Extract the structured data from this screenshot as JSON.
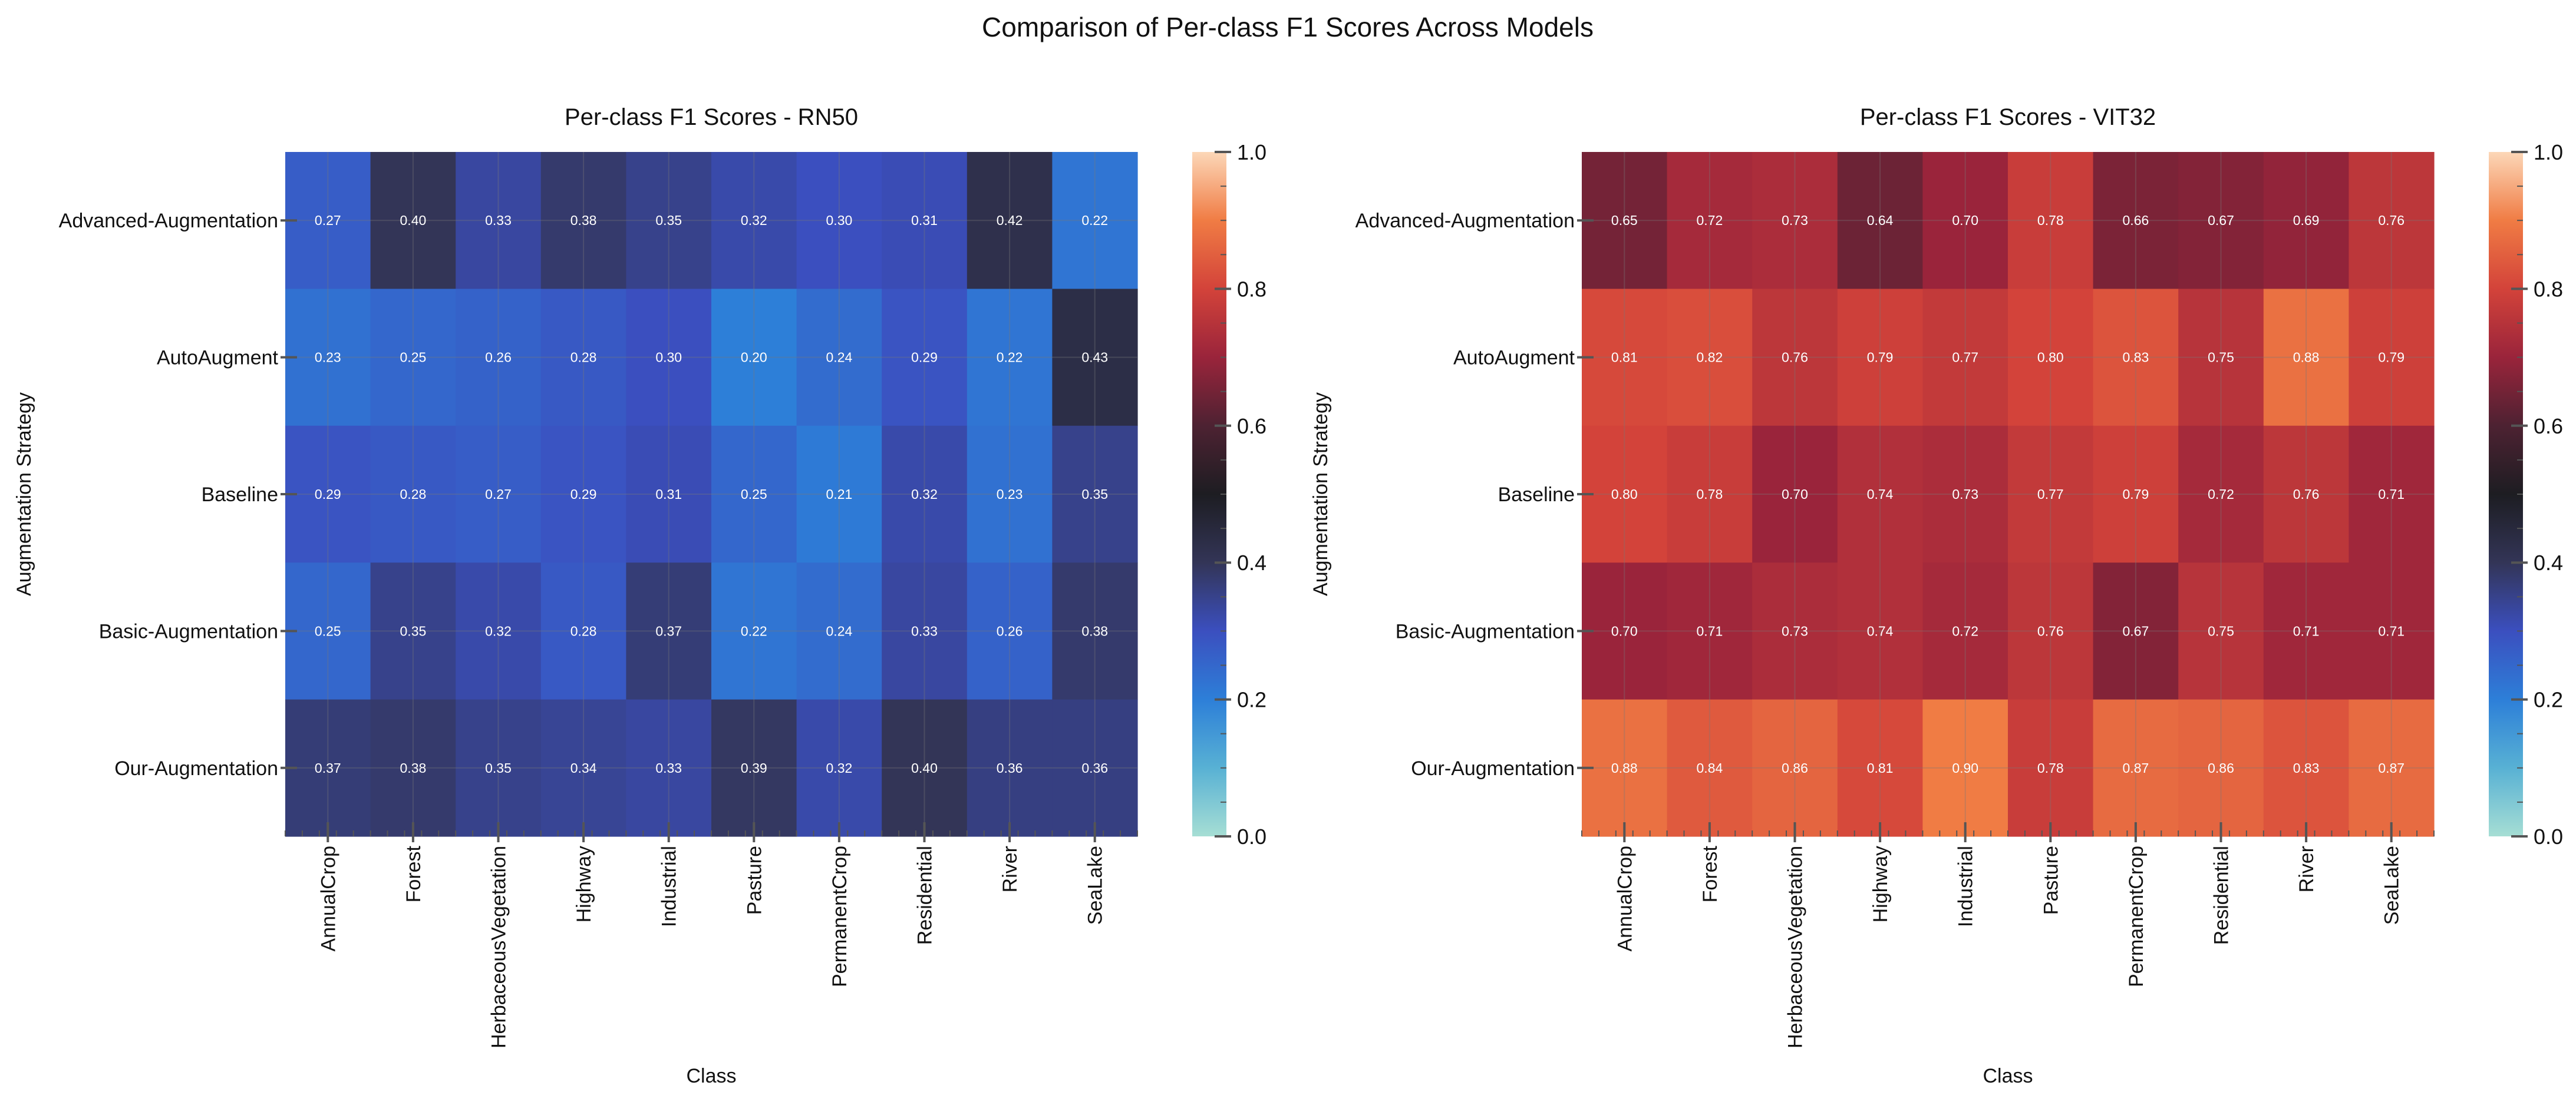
{
  "figure": {
    "suptitle": "Comparison of Per-class F1 Scores Across Models"
  },
  "chart_data": [
    {
      "type": "heatmap",
      "title": "Per-class F1 Scores - RN50",
      "xlabel": "Class",
      "ylabel": "Augmentation Strategy",
      "categories": [
        "AnnualCrop",
        "Forest",
        "HerbaceousVegetation",
        "Highway",
        "Industrial",
        "Pasture",
        "PermanentCrop",
        "Residential",
        "River",
        "SeaLake"
      ],
      "rows": [
        "Advanced-Augmentation",
        "AutoAugment",
        "Baseline",
        "Basic-Augmentation",
        "Our-Augmentation"
      ],
      "values": [
        [
          0.27,
          0.4,
          0.33,
          0.38,
          0.35,
          0.32,
          0.3,
          0.31,
          0.42,
          0.22
        ],
        [
          0.23,
          0.25,
          0.26,
          0.28,
          0.3,
          0.2,
          0.24,
          0.29,
          0.22,
          0.43
        ],
        [
          0.29,
          0.28,
          0.27,
          0.29,
          0.31,
          0.25,
          0.21,
          0.32,
          0.23,
          0.35
        ],
        [
          0.25,
          0.35,
          0.32,
          0.28,
          0.37,
          0.22,
          0.24,
          0.33,
          0.26,
          0.38
        ],
        [
          0.37,
          0.38,
          0.35,
          0.34,
          0.33,
          0.39,
          0.32,
          0.4,
          0.36,
          0.36
        ]
      ],
      "colorbar": {
        "range": [
          0.0,
          1.0
        ],
        "ticks": [
          "0.0",
          "0.2",
          "0.4",
          "0.6",
          "0.8",
          "1.0"
        ],
        "colormap": "icefire"
      }
    },
    {
      "type": "heatmap",
      "title": "Per-class F1 Scores - VIT32",
      "xlabel": "Class",
      "ylabel": "Augmentation Strategy",
      "categories": [
        "AnnualCrop",
        "Forest",
        "HerbaceousVegetation",
        "Highway",
        "Industrial",
        "Pasture",
        "PermanentCrop",
        "Residential",
        "River",
        "SeaLake"
      ],
      "rows": [
        "Advanced-Augmentation",
        "AutoAugment",
        "Baseline",
        "Basic-Augmentation",
        "Our-Augmentation"
      ],
      "values": [
        [
          0.65,
          0.72,
          0.73,
          0.64,
          0.7,
          0.78,
          0.66,
          0.67,
          0.69,
          0.76
        ],
        [
          0.81,
          0.82,
          0.76,
          0.79,
          0.77,
          0.8,
          0.83,
          0.75,
          0.88,
          0.79
        ],
        [
          0.8,
          0.78,
          0.7,
          0.74,
          0.73,
          0.77,
          0.79,
          0.72,
          0.76,
          0.71
        ],
        [
          0.7,
          0.71,
          0.73,
          0.74,
          0.72,
          0.76,
          0.67,
          0.75,
          0.71,
          0.71
        ],
        [
          0.88,
          0.84,
          0.86,
          0.81,
          0.9,
          0.78,
          0.87,
          0.86,
          0.83,
          0.87
        ]
      ],
      "colorbar": {
        "range": [
          0.0,
          1.0
        ],
        "ticks": [
          "0.0",
          "0.2",
          "0.4",
          "0.6",
          "0.8",
          "1.0"
        ],
        "colormap": "icefire"
      }
    }
  ]
}
